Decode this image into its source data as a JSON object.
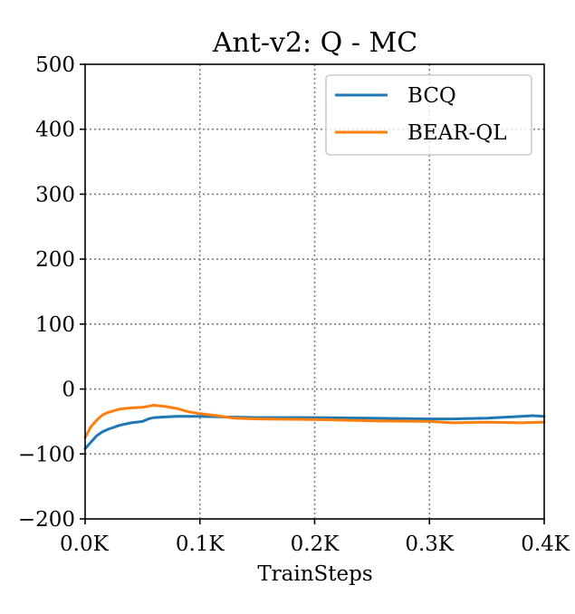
{
  "chart_data": {
    "type": "line",
    "title": "Ant-v2: Q - MC",
    "xlabel": "TrainSteps",
    "ylabel": "",
    "xlim": [
      0,
      0.4
    ],
    "ylim": [
      -200,
      500
    ],
    "x_ticks": [
      0.0,
      0.1,
      0.2,
      0.3,
      0.4
    ],
    "x_tick_labels": [
      "0.0K",
      "0.1K",
      "0.2K",
      "0.3K",
      "0.4K"
    ],
    "y_ticks": [
      -200,
      -100,
      0,
      100,
      200,
      300,
      400,
      500
    ],
    "y_tick_labels": [
      "−200",
      "−100",
      "0",
      "100",
      "200",
      "300",
      "400",
      "500"
    ],
    "grid": true,
    "legend_position": "top-right",
    "series": [
      {
        "name": "BCQ",
        "color": "#1f77b4",
        "x": [
          0.0,
          0.005,
          0.01,
          0.015,
          0.02,
          0.03,
          0.04,
          0.05,
          0.055,
          0.06,
          0.07,
          0.08,
          0.1,
          0.12,
          0.15,
          0.18,
          0.2,
          0.25,
          0.3,
          0.32,
          0.35,
          0.38,
          0.39,
          0.4
        ],
        "y": [
          -92,
          -82,
          -72,
          -66,
          -62,
          -56,
          -52,
          -50,
          -46,
          -44,
          -43,
          -42,
          -42,
          -43,
          -44,
          -44,
          -44,
          -45,
          -46,
          -46,
          -45,
          -42,
          -41,
          -42
        ]
      },
      {
        "name": "BEAR-QL",
        "color": "#ff7f0e",
        "x": [
          0.0,
          0.005,
          0.01,
          0.015,
          0.02,
          0.03,
          0.04,
          0.05,
          0.06,
          0.07,
          0.08,
          0.09,
          0.1,
          0.11,
          0.13,
          0.15,
          0.2,
          0.25,
          0.3,
          0.32,
          0.35,
          0.38,
          0.4
        ],
        "y": [
          -75,
          -58,
          -48,
          -40,
          -36,
          -31,
          -29,
          -28,
          -25,
          -27,
          -30,
          -35,
          -38,
          -40,
          -45,
          -46,
          -47,
          -49,
          -50,
          -52,
          -51,
          -52,
          -51
        ]
      }
    ]
  }
}
